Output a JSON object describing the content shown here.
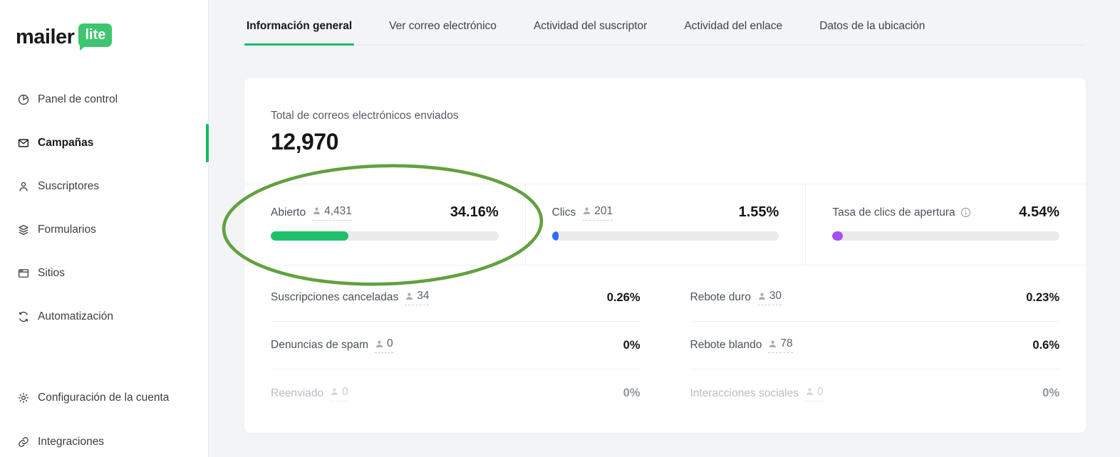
{
  "brand": {
    "name_main": "mailer",
    "name_badge": "lite"
  },
  "sidebar": {
    "items": [
      {
        "label": "Panel de control",
        "icon": "pie-chart-icon",
        "active": false
      },
      {
        "label": "Campañas",
        "icon": "envelope-icon",
        "active": true
      },
      {
        "label": "Suscriptores",
        "icon": "person-icon",
        "active": false
      },
      {
        "label": "Formularios",
        "icon": "layers-icon",
        "active": false
      },
      {
        "label": "Sitios",
        "icon": "browser-icon",
        "active": false
      },
      {
        "label": "Automatización",
        "icon": "refresh-icon",
        "active": false
      }
    ],
    "footer_items": [
      {
        "label": "Configuración de la cuenta",
        "icon": "gear-icon"
      },
      {
        "label": "Integraciones",
        "icon": "link-icon"
      }
    ]
  },
  "tabs": [
    {
      "label": "Información general",
      "active": true
    },
    {
      "label": "Ver correo electrónico",
      "active": false
    },
    {
      "label": "Actividad del suscriptor",
      "active": false
    },
    {
      "label": "Actividad del enlace",
      "active": false
    },
    {
      "label": "Datos de la ubicación",
      "active": false
    }
  ],
  "overview": {
    "total_label": "Total de correos electrónicos enviados",
    "total_value": "12,970"
  },
  "primary_stats": [
    {
      "label": "Abierto",
      "count": "4,431",
      "percent": "34.16%",
      "bar_percent": 34.16,
      "color": "#1fc06a"
    },
    {
      "label": "Clics",
      "count": "201",
      "percent": "1.55%",
      "bar_percent": 1.55,
      "color": "#2f6bff"
    },
    {
      "label": "Tasa de clics de apertura",
      "percent": "4.54%",
      "bar_percent": 4.54,
      "color": "#a551f0",
      "has_info_icon": true
    }
  ],
  "secondary_stats": {
    "left": [
      {
        "label": "Suscripciones canceladas",
        "count": "34",
        "percent": "0.26%",
        "muted": false
      },
      {
        "label": "Denuncias de spam",
        "count": "0",
        "percent": "0%",
        "muted": false
      },
      {
        "label": "Reenviado",
        "count": "0",
        "percent": "0%",
        "muted": true
      }
    ],
    "right": [
      {
        "label": "Rebote duro",
        "count": "30",
        "percent": "0.23%",
        "muted": false
      },
      {
        "label": "Rebote blando",
        "count": "78",
        "percent": "0.6%",
        "muted": false
      },
      {
        "label": "Interacciones sociales",
        "count": "0",
        "percent": "0%",
        "muted": true
      }
    ]
  },
  "annotation": {
    "shape": "ellipse",
    "color": "#5a9c35",
    "target": "Abierto stat"
  },
  "colors": {
    "accent_green": "#0fbe62",
    "bar_green": "#1fc06a",
    "bar_blue": "#2f6bff",
    "bar_purple": "#a551f0",
    "page_bg": "#f3f4f6"
  }
}
